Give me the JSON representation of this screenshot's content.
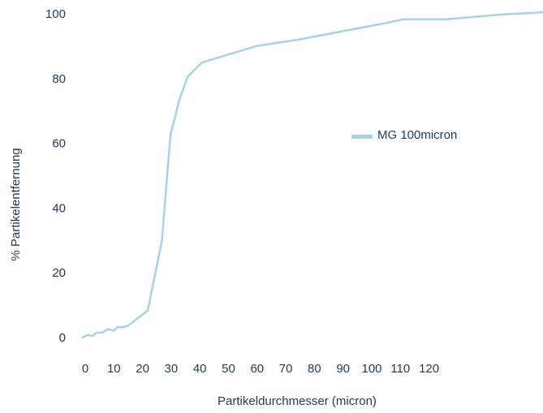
{
  "chart_data": {
    "type": "line",
    "title": "",
    "xlabel": "Partikeldurchmesser (micron)",
    "ylabel": "% Partikelentfernung",
    "x_ticks": [
      0,
      10,
      20,
      30,
      40,
      50,
      60,
      70,
      80,
      90,
      100,
      110,
      120
    ],
    "y_ticks": [
      0,
      20,
      40,
      60,
      80,
      100
    ],
    "xlim": [
      -1,
      162
    ],
    "ylim": [
      0,
      101
    ],
    "grid": false,
    "legend_position": "right",
    "series": [
      {
        "name": "MG 100micron",
        "color": "#a6d3e6",
        "x": [
          -1,
          1,
          2.5,
          4,
          6,
          8,
          10,
          11.5,
          13,
          15,
          17,
          22,
          27,
          30,
          33,
          36,
          41,
          60,
          75,
          90,
          105,
          112,
          127,
          147,
          162
        ],
        "y": [
          0,
          0.8,
          0.5,
          1.5,
          1.5,
          2.6,
          2.1,
          3.3,
          3.1,
          3.6,
          5,
          8.3,
          30,
          62.5,
          73,
          80.5,
          84.9,
          90,
          92,
          94.5,
          97,
          98.3,
          98.3,
          99.8,
          100.5
        ]
      }
    ]
  }
}
